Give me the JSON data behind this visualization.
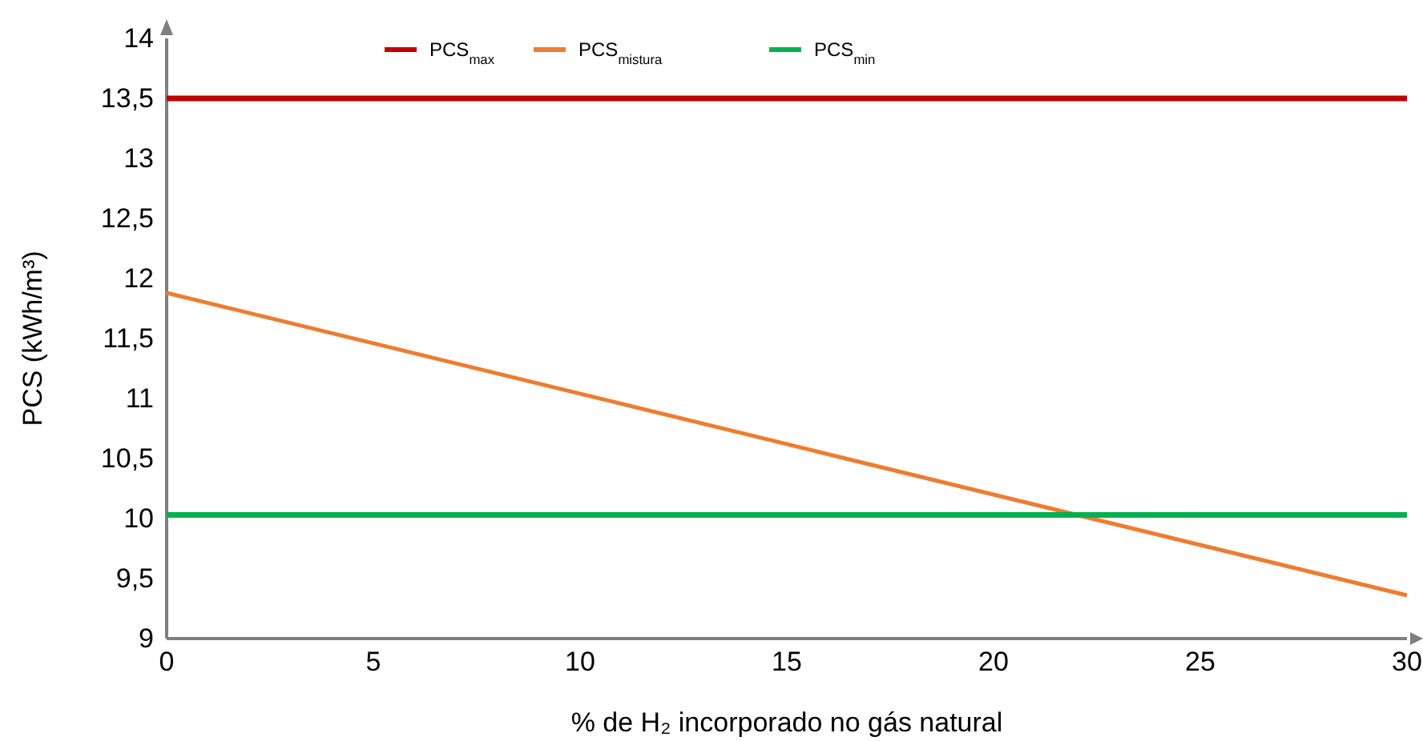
{
  "chart_data": {
    "type": "line",
    "xlabel": "% de H₂ incorporado no gás natural",
    "ylabel": "PCS (kWh/m³)",
    "xlim": [
      0,
      30
    ],
    "xticks": [
      0,
      5,
      10,
      15,
      20,
      25,
      30
    ],
    "ylim": [
      9,
      14
    ],
    "yticks": [
      9,
      {
        "value": 9.5,
        "label": "9,5"
      },
      10,
      {
        "value": 10.5,
        "label": "10,5"
      },
      11,
      {
        "value": 11.5,
        "label": "11,5"
      },
      12,
      {
        "value": 12.5,
        "label": "12,5"
      },
      13,
      {
        "value": 13.5,
        "label": "13,5"
      },
      14
    ],
    "x": [
      0,
      30
    ],
    "grid": false,
    "legend": "top",
    "marker": "none",
    "line_style": "solid",
    "series": [
      {
        "name": "PCS$_{max}$",
        "color": "#c00000",
        "values": [
          13.5,
          13.5
        ]
      },
      {
        "name": "PCS$_{mistura}$",
        "color": "#ed7d31",
        "values": [
          11.88,
          9.36
        ]
      },
      {
        "name": "PCS$_{min}$",
        "color": "#00b050",
        "values": [
          10.03,
          10.03
        ]
      }
    ]
  }
}
